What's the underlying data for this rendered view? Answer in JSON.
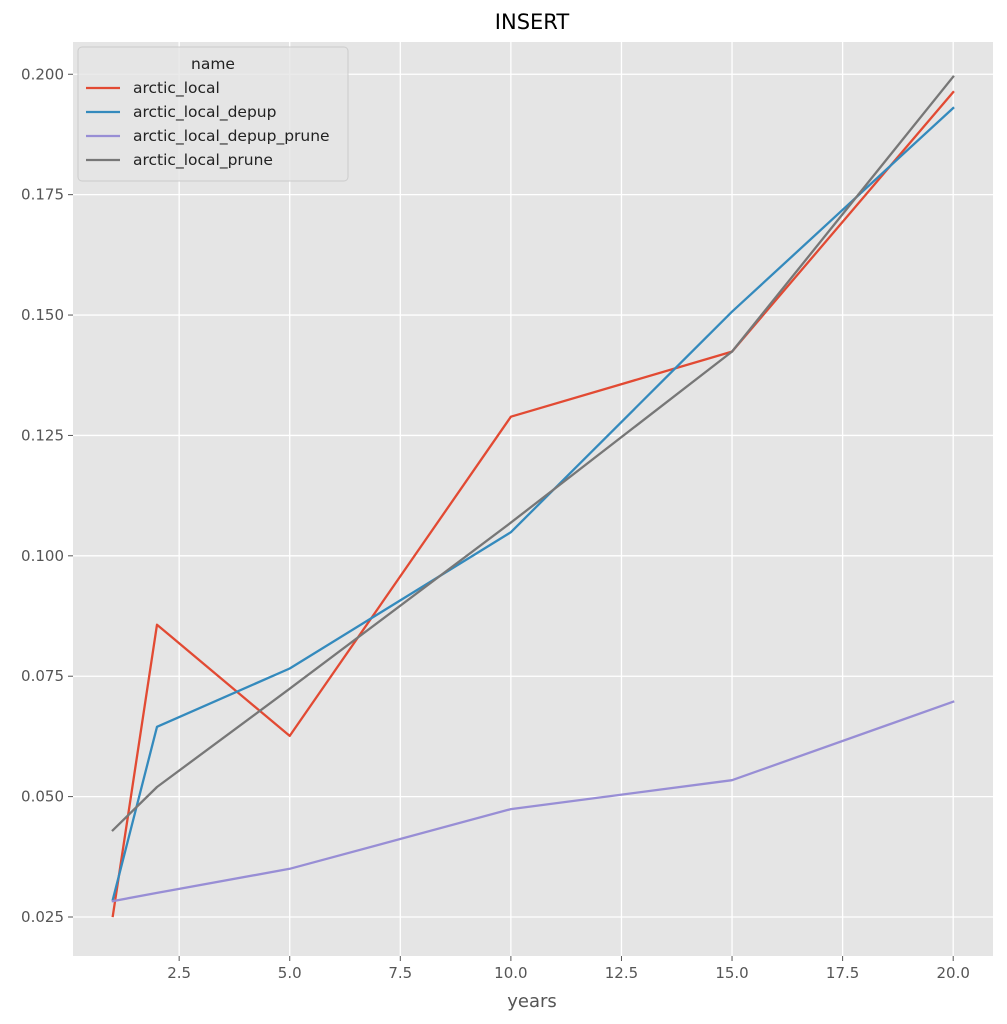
{
  "chart_data": {
    "type": "line",
    "title": "INSERT",
    "xlabel": "years",
    "ylabel": "",
    "xlim": [
      0.1,
      20.9
    ],
    "ylim": [
      0.0169,
      0.2067
    ],
    "xticks": [
      2.5,
      5.0,
      7.5,
      10.0,
      12.5,
      15.0,
      17.5,
      20.0
    ],
    "xtick_labels": [
      "2.5",
      "5.0",
      "7.5",
      "10.0",
      "12.5",
      "15.0",
      "17.5",
      "20.0"
    ],
    "yticks": [
      0.025,
      0.05,
      0.075,
      0.1,
      0.125,
      0.15,
      0.175,
      0.2
    ],
    "ytick_labels": [
      "0.025",
      "0.050",
      "0.075",
      "0.100",
      "0.125",
      "0.150",
      "0.175",
      "0.200"
    ],
    "grid": true,
    "legend": {
      "title": "name",
      "position": "upper-left"
    },
    "x": [
      1,
      2,
      5,
      10,
      15,
      20
    ],
    "series": [
      {
        "name": "arctic_local",
        "color": "#E24A33",
        "values": [
          0.0252,
          0.0857,
          0.0626,
          0.1289,
          0.1424,
          0.1963
        ]
      },
      {
        "name": "arctic_local_depup",
        "color": "#348ABD",
        "values": [
          0.0286,
          0.0645,
          0.0766,
          0.1049,
          0.1507,
          0.193
        ]
      },
      {
        "name": "arctic_local_depup_prune",
        "color": "#988ED5",
        "values": [
          0.0283,
          0.03,
          0.035,
          0.0474,
          0.0534,
          0.0697
        ]
      },
      {
        "name": "arctic_local_prune",
        "color": "#777777",
        "values": [
          0.043,
          0.052,
          0.0724,
          0.1069,
          0.1424,
          0.1995
        ]
      }
    ]
  }
}
